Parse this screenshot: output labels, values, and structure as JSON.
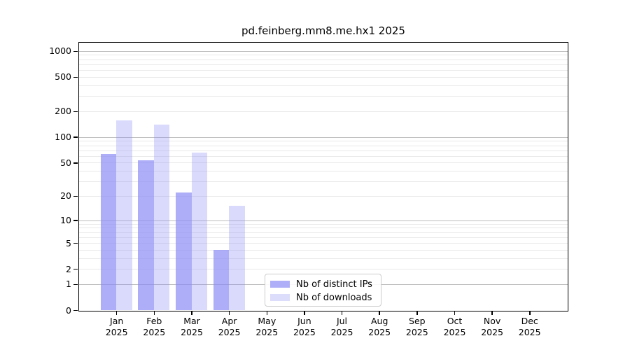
{
  "chart_data": {
    "type": "bar",
    "title": "pd.feinberg.mm8.me.hx1 2025",
    "year_label": "2025",
    "y_scale": "log1p",
    "ylim": [
      0,
      1258
    ],
    "y_ticks": [
      1000,
      500,
      200,
      100,
      50,
      20,
      10,
      5,
      2,
      1,
      0
    ],
    "categories": [
      "Jan",
      "Feb",
      "Mar",
      "Apr",
      "May",
      "Jun",
      "Jul",
      "Aug",
      "Sep",
      "Oct",
      "Nov",
      "Dec"
    ],
    "series": [
      {
        "name": "Nb of distinct IPs",
        "color": "rgba(140,140,245,0.70)",
        "legend_color": "#aeaef8",
        "values": [
          63,
          53,
          22,
          4,
          0,
          0,
          0,
          0,
          0,
          0,
          0,
          0
        ]
      },
      {
        "name": "Nb of downloads",
        "color": "rgba(140,140,245,0.32)",
        "legend_color": "#dcdcfb",
        "values": [
          155,
          140,
          66,
          15,
          0,
          0,
          0,
          0,
          0,
          0,
          0,
          0
        ]
      }
    ],
    "grid": {
      "major_color": "#bdbdbd",
      "minor_color": "#e9e9e9",
      "major_values": [
        1,
        10,
        100,
        1000
      ]
    },
    "legend_position": "lower center"
  }
}
